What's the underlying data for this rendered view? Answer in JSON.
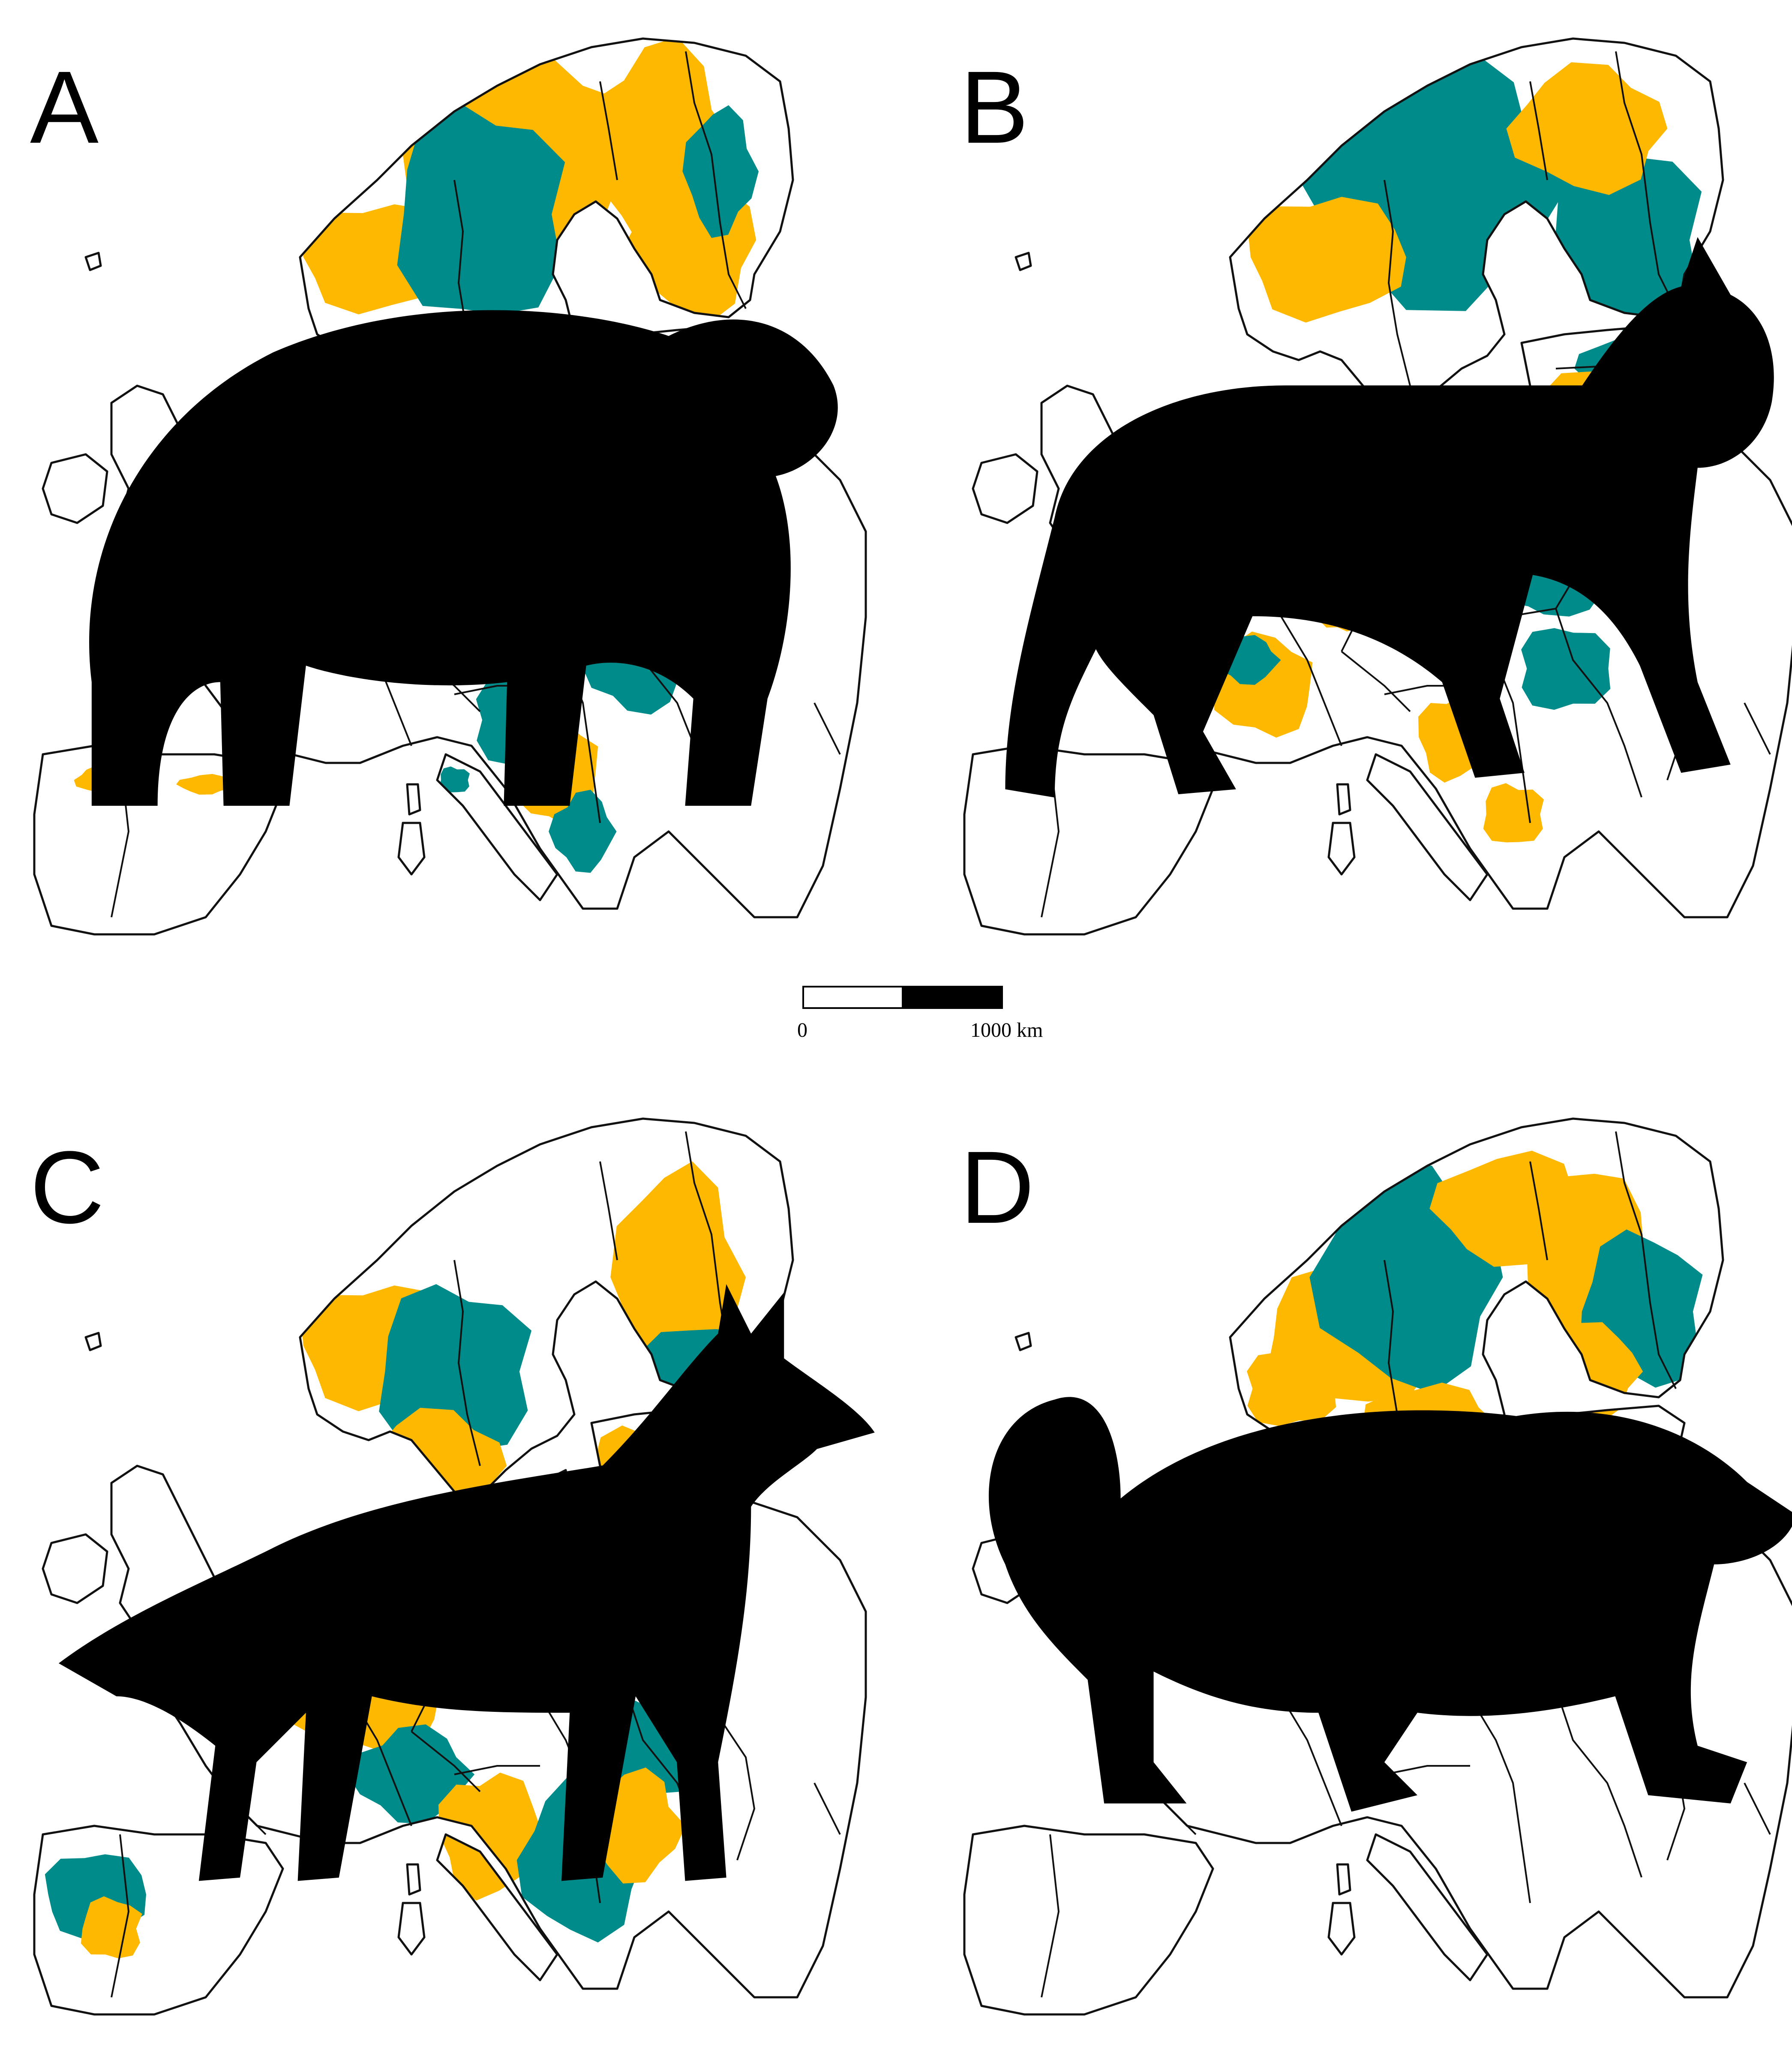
{
  "colors": {
    "teal": "#008B8B",
    "gold": "#FFB800",
    "border": "#111111",
    "silhouette": "#000000"
  },
  "panels": [
    {
      "letter": "A",
      "animal_icon": "brown-bear-icon"
    },
    {
      "letter": "B",
      "animal_icon": "lynx-icon"
    },
    {
      "letter": "C",
      "animal_icon": "wolf-icon"
    },
    {
      "letter": "D",
      "animal_icon": "wolverine-icon"
    }
  ],
  "scale_bar": {
    "start_label": "0",
    "end_label": "1000 km"
  }
}
